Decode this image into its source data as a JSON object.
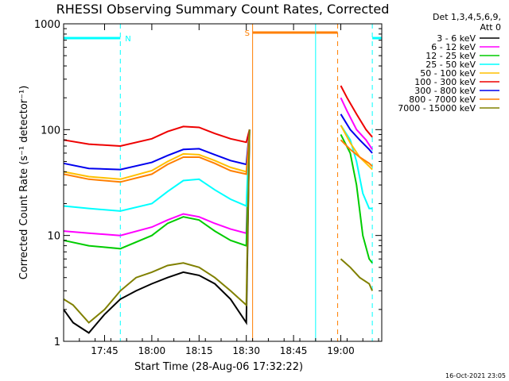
{
  "header": {
    "title": "RHESSI Observing Summary Count Rates, Corrected",
    "detector_label": "Det 1,3,4,5,6,9,",
    "attenuator_label": "Att 0",
    "footer_timestamp": "16-Oct-2021 23:05"
  },
  "chart_data": {
    "type": "line",
    "title": "RHESSI Observing Summary Count Rates, Corrected",
    "xlabel": "Start Time (28-Aug-06 17:32:22)",
    "ylabel": "Corrected Count Rate (s⁻¹ detector⁻¹)",
    "ylog": true,
    "xlim": [
      "17:32",
      "19:13"
    ],
    "ylim": [
      1,
      1000
    ],
    "x_ticks": [
      "17:45",
      "18:00",
      "18:15",
      "18:30",
      "18:45",
      "19:00"
    ],
    "y_ticks": [
      "1",
      "10",
      "100",
      "1000"
    ],
    "legend_position": "right",
    "annotations": {
      "night_label": "N",
      "saa_label": "S",
      "night_start": "17:32",
      "night_end": "17:50",
      "saa_start": "18:32",
      "saa_end": "18:59",
      "gap_start": "18:32",
      "gap_end": "19:00",
      "cyan_lines": [
        "17:50",
        "18:52",
        "19:10"
      ],
      "orange_dashed": "18:59"
    },
    "series": [
      {
        "name": "3 - 6 keV",
        "color": "#000000",
        "values": [
          [
            "17:32",
            2
          ],
          [
            "17:35",
            1.5
          ],
          [
            "17:40",
            1.2
          ],
          [
            "17:45",
            1.8
          ],
          [
            "17:50",
            2.5
          ],
          [
            "17:55",
            3
          ],
          [
            "18:00",
            3.5
          ],
          [
            "18:05",
            4
          ],
          [
            "18:10",
            4.5
          ],
          [
            "18:15",
            4.2
          ],
          [
            "18:20",
            3.5
          ],
          [
            "18:25",
            2.5
          ],
          [
            "18:30",
            1.5
          ],
          [
            "18:31",
            100
          ],
          [
            "18:32",
            230
          ]
        ]
      },
      {
        "name": "6 - 12 keV",
        "color": "#ff00ff",
        "values": [
          [
            "17:32",
            11
          ],
          [
            "17:40",
            10.5
          ],
          [
            "17:50",
            10
          ],
          [
            "18:00",
            12
          ],
          [
            "18:05",
            14
          ],
          [
            "18:10",
            16
          ],
          [
            "18:15",
            15
          ],
          [
            "18:20",
            13
          ],
          [
            "18:25",
            11.5
          ],
          [
            "18:30",
            10.5
          ],
          [
            "18:31",
            100
          ],
          [
            "18:32",
            230
          ],
          [
            "19:00",
            200
          ],
          [
            "19:02",
            150
          ],
          [
            "19:05",
            100
          ],
          [
            "19:08",
            80
          ],
          [
            "19:10",
            65
          ]
        ]
      },
      {
        "name": "12 - 25 keV",
        "color": "#00cc00",
        "values": [
          [
            "17:32",
            9
          ],
          [
            "17:40",
            8
          ],
          [
            "17:50",
            7.5
          ],
          [
            "18:00",
            10
          ],
          [
            "18:05",
            13
          ],
          [
            "18:10",
            15
          ],
          [
            "18:15",
            14
          ],
          [
            "18:20",
            11
          ],
          [
            "18:25",
            9
          ],
          [
            "18:30",
            8
          ],
          [
            "18:31",
            100
          ],
          [
            "18:32",
            230
          ],
          [
            "19:00",
            90
          ],
          [
            "19:03",
            60
          ],
          [
            "19:05",
            30
          ],
          [
            "19:07",
            10
          ],
          [
            "19:09",
            6
          ],
          [
            "19:10",
            5.5
          ]
        ]
      },
      {
        "name": "25 - 50 keV",
        "color": "#00ffff",
        "values": [
          [
            "17:32",
            19
          ],
          [
            "17:40",
            18
          ],
          [
            "17:50",
            17
          ],
          [
            "18:00",
            20
          ],
          [
            "18:05",
            26
          ],
          [
            "18:10",
            33
          ],
          [
            "18:15",
            34
          ],
          [
            "18:20",
            27
          ],
          [
            "18:25",
            22
          ],
          [
            "18:30",
            19
          ],
          [
            "18:31",
            100
          ],
          [
            "18:32",
            230
          ],
          [
            "19:00",
            110
          ],
          [
            "19:03",
            80
          ],
          [
            "19:05",
            50
          ],
          [
            "19:07",
            25
          ],
          [
            "19:09",
            18
          ],
          [
            "19:10",
            18
          ]
        ]
      },
      {
        "name": "50 - 100 keV",
        "color": "#ffc000",
        "values": [
          [
            "17:32",
            40
          ],
          [
            "17:40",
            36
          ],
          [
            "17:50",
            34
          ],
          [
            "18:00",
            41
          ],
          [
            "18:05",
            50
          ],
          [
            "18:10",
            59
          ],
          [
            "18:15",
            58
          ],
          [
            "18:20",
            51
          ],
          [
            "18:25",
            44
          ],
          [
            "18:30",
            40
          ],
          [
            "18:31",
            100
          ],
          [
            "18:32",
            230
          ],
          [
            "19:00",
            110
          ],
          [
            "19:03",
            75
          ],
          [
            "19:06",
            55
          ],
          [
            "19:09",
            45
          ],
          [
            "19:10",
            42
          ]
        ]
      },
      {
        "name": "100 - 300 keV",
        "color": "#ee0000",
        "values": [
          [
            "17:32",
            80
          ],
          [
            "17:40",
            73
          ],
          [
            "17:50",
            70
          ],
          [
            "18:00",
            82
          ],
          [
            "18:05",
            96
          ],
          [
            "18:10",
            107
          ],
          [
            "18:15",
            105
          ],
          [
            "18:20",
            92
          ],
          [
            "18:25",
            82
          ],
          [
            "18:30",
            76
          ],
          [
            "18:31",
            100
          ],
          [
            "18:32",
            230
          ],
          [
            "19:00",
            260
          ],
          [
            "19:02",
            200
          ],
          [
            "19:05",
            140
          ],
          [
            "19:08",
            100
          ],
          [
            "19:10",
            85
          ]
        ]
      },
      {
        "name": "300 - 800 keV",
        "color": "#0000ee",
        "values": [
          [
            "17:32",
            48
          ],
          [
            "17:40",
            43
          ],
          [
            "17:50",
            42
          ],
          [
            "18:00",
            49
          ],
          [
            "18:05",
            57
          ],
          [
            "18:10",
            65
          ],
          [
            "18:15",
            66
          ],
          [
            "18:20",
            58
          ],
          [
            "18:25",
            51
          ],
          [
            "18:30",
            47
          ],
          [
            "18:31",
            100
          ],
          [
            "18:32",
            230
          ],
          [
            "19:00",
            140
          ],
          [
            "19:03",
            100
          ],
          [
            "19:06",
            80
          ],
          [
            "19:09",
            65
          ],
          [
            "19:10",
            60
          ]
        ]
      },
      {
        "name": "800 - 7000 keV",
        "color": "#ff7f00",
        "values": [
          [
            "17:32",
            38
          ],
          [
            "17:40",
            34
          ],
          [
            "17:50",
            32
          ],
          [
            "18:00",
            38
          ],
          [
            "18:05",
            47
          ],
          [
            "18:10",
            55
          ],
          [
            "18:15",
            55
          ],
          [
            "18:20",
            48
          ],
          [
            "18:25",
            41
          ],
          [
            "18:30",
            38
          ],
          [
            "18:31",
            100
          ],
          [
            "18:32",
            230
          ],
          [
            "19:00",
            80
          ],
          [
            "19:03",
            65
          ],
          [
            "19:06",
            55
          ],
          [
            "19:09",
            48
          ],
          [
            "19:10",
            45
          ]
        ]
      },
      {
        "name": "7000 - 15000 keV",
        "color": "#808000",
        "values": [
          [
            "17:32",
            2.5
          ],
          [
            "17:35",
            2.2
          ],
          [
            "17:40",
            1.5
          ],
          [
            "17:45",
            2
          ],
          [
            "17:50",
            3
          ],
          [
            "17:55",
            4
          ],
          [
            "18:00",
            4.5
          ],
          [
            "18:05",
            5.2
          ],
          [
            "18:10",
            5.5
          ],
          [
            "18:15",
            5
          ],
          [
            "18:20",
            4
          ],
          [
            "18:25",
            3
          ],
          [
            "18:30",
            2.2
          ],
          [
            "18:31",
            100
          ],
          [
            "18:32",
            230
          ],
          [
            "19:00",
            6
          ],
          [
            "19:03",
            5
          ],
          [
            "19:06",
            4
          ],
          [
            "19:09",
            3.5
          ],
          [
            "19:10",
            3
          ]
        ]
      }
    ]
  }
}
